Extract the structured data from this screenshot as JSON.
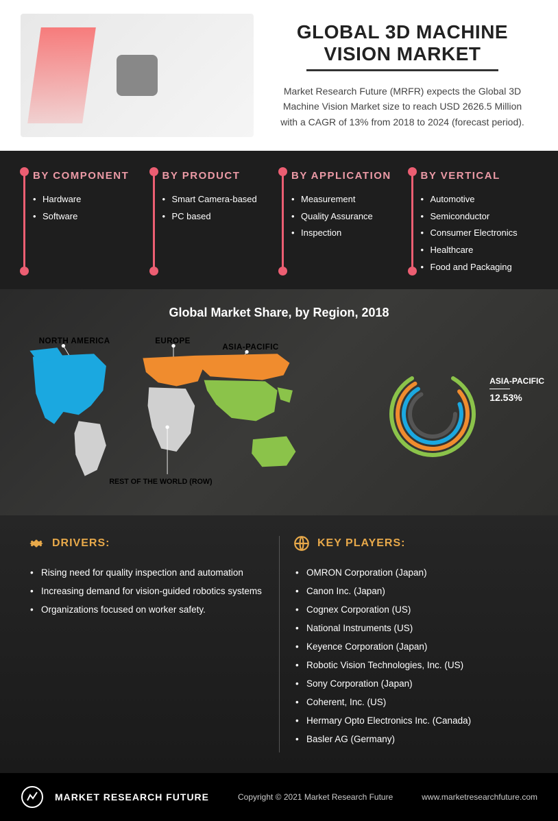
{
  "header": {
    "title": "GLOBAL 3D MACHINE VISION MARKET",
    "subtitle": "Market Research Future (MRFR) expects the Global 3D Machine Vision Market size to reach USD 2626.5 Million with a CAGR of 13% from 2018 to 2024 (forecast period)."
  },
  "categories": [
    {
      "title": "BY COMPONENT",
      "items": [
        "Hardware",
        "Software"
      ]
    },
    {
      "title": "BY PRODUCT",
      "items": [
        "Smart Camera-based",
        "PC based"
      ]
    },
    {
      "title": "BY APPLICATION",
      "items": [
        "Measurement",
        "Quality Assurance",
        "Inspection"
      ]
    },
    {
      "title": "BY VERTICAL",
      "items": [
        "Automotive",
        "Semiconductor",
        "Consumer Electronics",
        "Healthcare",
        "Food and Packaging"
      ]
    }
  ],
  "map": {
    "title": "Global Market Share, by Region, 2018",
    "regions": {
      "na": {
        "label": "NORTH AMERICA",
        "color": "#1ba8e0"
      },
      "eu": {
        "label": "EUROPE",
        "color": "#f08c2e"
      },
      "ap": {
        "label": "ASIA-PACIFIC",
        "color": "#8bc34a"
      },
      "row": {
        "label": "REST OF THE WORLD (ROW)",
        "color": "#d0d0d0"
      }
    },
    "donut": {
      "highlight_label": "ASIA-PACIFIC",
      "highlight_value": "12.53%",
      "rings": [
        {
          "color": "#8bc34a",
          "start": 30,
          "sweep": 300
        },
        {
          "color": "#f08c2e",
          "start": 50,
          "sweep": 280
        },
        {
          "color": "#1ba8e0",
          "start": 70,
          "sweep": 260
        },
        {
          "color": "#555555",
          "start": 90,
          "sweep": 240
        }
      ],
      "ring_width": 6,
      "gap": 3
    }
  },
  "drivers": {
    "title": "DRIVERS:",
    "items": [
      "Rising need for quality inspection and automation",
      "Increasing demand for vision-guided robotics systems",
      "Organizations focused on worker safety."
    ]
  },
  "players": {
    "title": "KEY PLAYERS:",
    "items": [
      "OMRON Corporation (Japan)",
      "Canon Inc. (Japan)",
      "Cognex Corporation (US)",
      "National Instruments (US)",
      "Keyence Corporation (Japan)",
      "Robotic Vision Technologies, Inc. (US)",
      "Sony Corporation (Japan)",
      "Coherent, Inc. (US)",
      "Hermary Opto Electronics Inc. (Canada)",
      "Basler AG (Germany)"
    ]
  },
  "footer": {
    "brand": "MARKET RESEARCH FUTURE",
    "copyright": "Copyright © 2021 Market Research Future",
    "url": "www.marketresearchfuture.com"
  },
  "colors": {
    "accent_pink": "#ec5e72",
    "accent_gold": "#e8a94a",
    "dark_bg": "#1e1e1e"
  }
}
